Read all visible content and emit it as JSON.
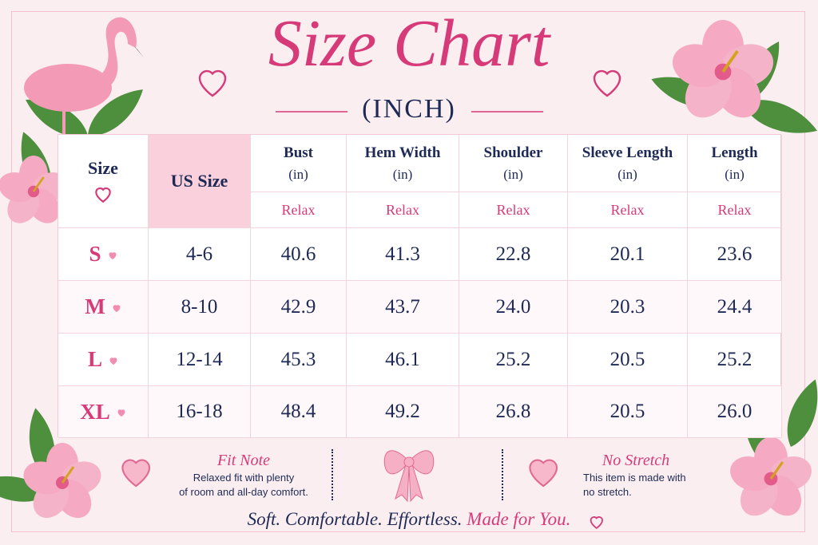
{
  "header": {
    "title": "Size Chart",
    "subtitle": "(INCH)"
  },
  "table": {
    "columns": [
      {
        "name": "Size"
      },
      {
        "name": "US Size"
      },
      {
        "name": "Bust",
        "unit": "(in)",
        "fit": "Relax"
      },
      {
        "name": "Hem Width",
        "unit": "(in)",
        "fit": "Relax"
      },
      {
        "name": "Shoulder",
        "unit": "(in)",
        "fit": "Relax"
      },
      {
        "name": "Sleeve Length",
        "unit": "(in)",
        "fit": "Relax"
      },
      {
        "name": "Length",
        "unit": "(in)",
        "fit": "Relax"
      }
    ],
    "rows": [
      [
        "S",
        "4-6",
        "40.6",
        "41.3",
        "22.8",
        "20.1",
        "23.6"
      ],
      [
        "M",
        "8-10",
        "42.9",
        "43.7",
        "24.0",
        "20.3",
        "24.4"
      ],
      [
        "L",
        "12-14",
        "45.3",
        "46.1",
        "25.2",
        "20.5",
        "25.2"
      ],
      [
        "XL",
        "16-18",
        "48.4",
        "49.2",
        "26.8",
        "20.5",
        "26.0"
      ]
    ]
  },
  "notes": [
    {
      "title": "Fit Note",
      "lines": [
        "Relaxed fit with plenty",
        "of room and all-day comfort."
      ]
    },
    {
      "title": "No Stretch",
      "lines": [
        "This item is made with",
        "no stretch."
      ]
    }
  ],
  "tagline": {
    "text": "Soft. Comfortable. Effortless.",
    "emphasis": "Made for You."
  }
}
